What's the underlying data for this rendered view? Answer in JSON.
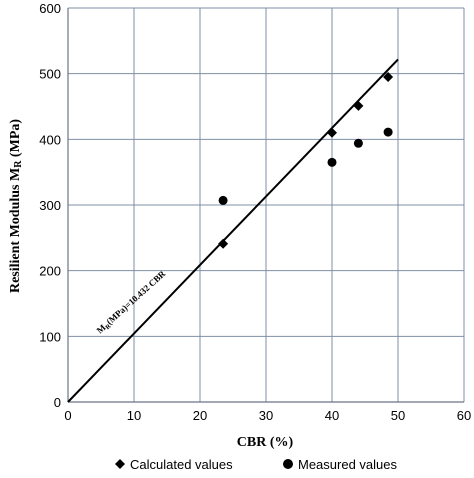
{
  "chart_data": {
    "type": "scatter",
    "xlabel": "CBR (%)",
    "ylabel": "Resilient Modulus  MR (MPa)",
    "xlim": [
      0,
      60
    ],
    "ylim": [
      0,
      600
    ],
    "x_ticks": [
      0,
      10,
      20,
      30,
      40,
      50,
      60
    ],
    "y_ticks": [
      0,
      100,
      200,
      300,
      400,
      500,
      600
    ],
    "grid": true,
    "legend_position": "bottom",
    "annotation": "MR(MPa)=10.432 CBR",
    "trendline": {
      "slope": 10.432,
      "intercept": 0,
      "x_range": [
        0,
        50
      ]
    },
    "series": [
      {
        "name": "Calculated values",
        "marker": "diamond",
        "color": "#000000",
        "x": [
          23.5,
          40,
          44,
          48.5
        ],
        "y": [
          241,
          410,
          451,
          495
        ]
      },
      {
        "name": "Measured values",
        "marker": "circle",
        "color": "#000000",
        "x": [
          23.5,
          40,
          44,
          48.5
        ],
        "y": [
          307,
          365,
          394,
          411
        ]
      }
    ]
  }
}
